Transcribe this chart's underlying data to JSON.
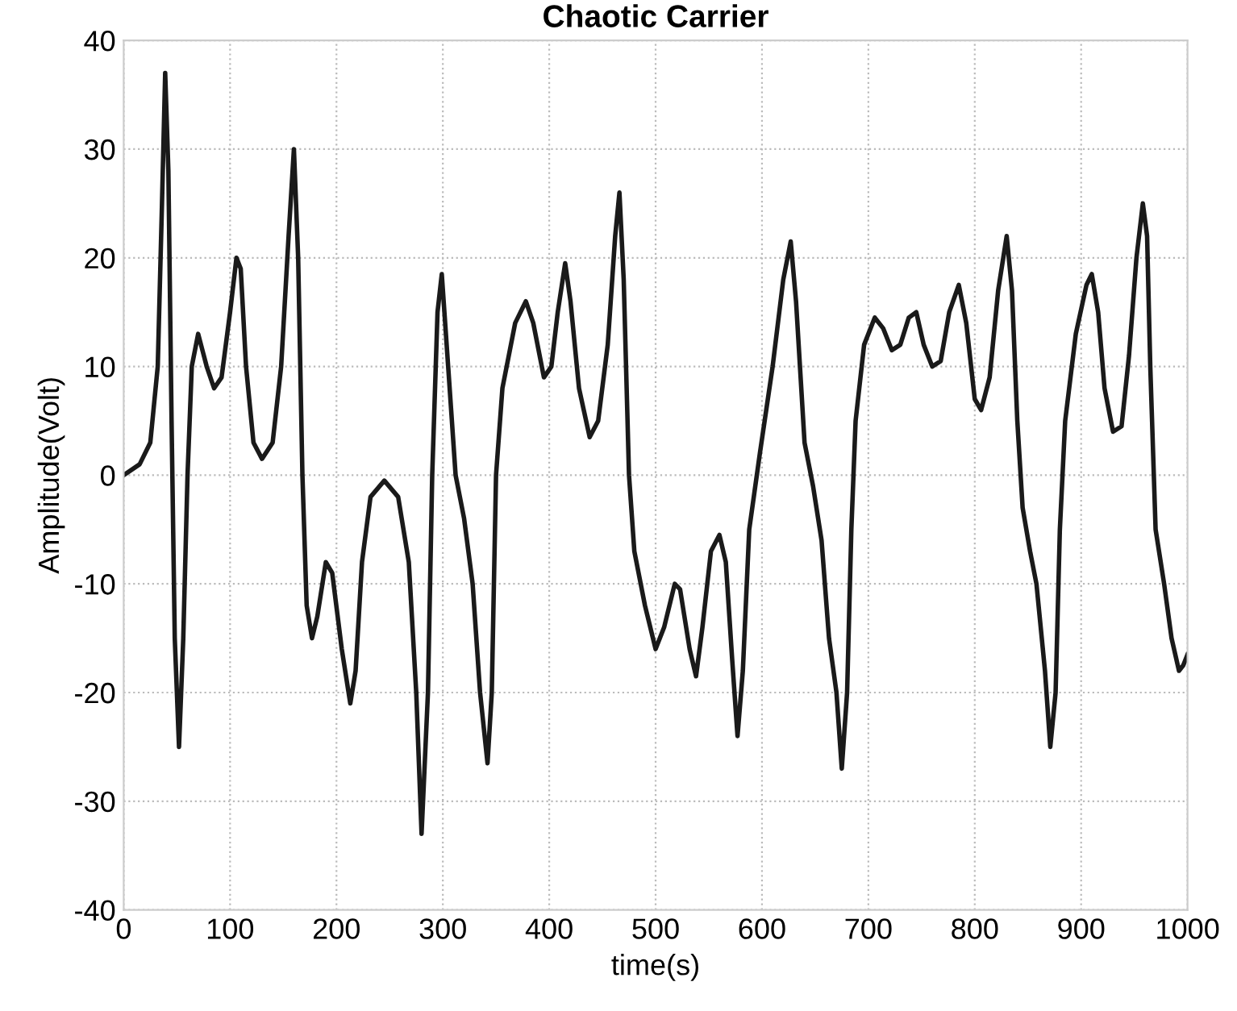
{
  "chart_data": {
    "type": "line",
    "title": "Chaotic Carrier",
    "xlabel": "time(s)",
    "ylabel": "Amplitude(Volt)",
    "xlim": [
      0,
      1000
    ],
    "xticks": [
      0,
      100,
      200,
      300,
      400,
      500,
      600,
      700,
      800,
      900,
      1000
    ],
    "ylim": [
      -40,
      40
    ],
    "yticks": [
      -40,
      -30,
      -20,
      -10,
      0,
      10,
      20,
      30,
      40
    ],
    "grid": true,
    "marker": "none",
    "line_style": "solid",
    "series": [
      {
        "color": "#1a1a1a",
        "x": [
          0,
          15,
          25,
          32,
          36,
          39,
          42,
          45,
          48,
          52,
          56,
          60,
          64,
          70,
          78,
          85,
          92,
          100,
          106,
          110,
          115,
          122,
          130,
          140,
          148,
          155,
          160,
          164,
          168,
          172,
          177,
          182,
          190,
          196,
          205,
          213,
          218,
          224,
          232,
          245,
          258,
          268,
          275,
          280,
          286,
          290,
          295,
          299,
          305,
          312,
          320,
          328,
          335,
          342,
          346,
          350,
          356,
          368,
          378,
          385,
          395,
          402,
          408,
          415,
          420,
          428,
          438,
          446,
          455,
          462,
          466,
          470,
          475,
          480,
          490,
          500,
          508,
          518,
          523,
          532,
          538,
          544,
          552,
          560,
          566,
          572,
          577,
          582,
          588,
          598,
          610,
          620,
          627,
          632,
          640,
          648,
          656,
          663,
          670,
          675,
          680,
          684,
          688,
          696,
          706,
          714,
          722,
          730,
          738,
          745,
          752,
          760,
          768,
          776,
          785,
          792,
          800,
          806,
          814,
          822,
          830,
          835,
          840,
          845,
          852,
          858,
          866,
          871,
          876,
          880,
          885,
          895,
          905,
          910,
          916,
          922,
          930,
          938,
          945,
          952,
          958,
          962,
          965,
          970,
          978,
          985,
          992,
          996,
          1000
        ],
        "values": [
          0,
          1,
          3,
          10,
          25,
          37,
          28,
          5,
          -15,
          -25,
          -15,
          0,
          10,
          13,
          10,
          8,
          9,
          15,
          20,
          19,
          10,
          3,
          1.5,
          3,
          10,
          22,
          30,
          20,
          0,
          -12,
          -15,
          -13,
          -8,
          -9,
          -16,
          -21,
          -18,
          -8,
          -2,
          -0.5,
          -2,
          -8,
          -20,
          -33,
          -20,
          0,
          15,
          18.5,
          10,
          0,
          -4,
          -10,
          -20,
          -26.5,
          -20,
          0,
          8,
          14,
          16,
          14,
          9,
          10,
          15,
          19.5,
          16,
          8,
          3.5,
          5,
          12,
          22,
          26,
          18,
          0,
          -7,
          -12,
          -16,
          -14,
          -10,
          -10.5,
          -16,
          -18.5,
          -14,
          -7,
          -5.5,
          -8,
          -17,
          -24,
          -18,
          -5,
          2,
          10,
          18,
          21.5,
          16,
          3,
          -1,
          -6,
          -15,
          -20,
          -27,
          -20,
          -5,
          5,
          12,
          14.5,
          13.5,
          11.5,
          12,
          14.5,
          15,
          12,
          10,
          10.5,
          15,
          17.5,
          14,
          7,
          6,
          9,
          17,
          22,
          17,
          5,
          -3,
          -7,
          -10,
          -18,
          -25,
          -20,
          -5,
          5,
          13,
          17.5,
          18.5,
          15,
          8,
          4,
          4.5,
          11,
          20,
          25,
          22,
          10,
          -5,
          -10,
          -15,
          -18,
          -17.5,
          -16.5
        ]
      }
    ]
  }
}
